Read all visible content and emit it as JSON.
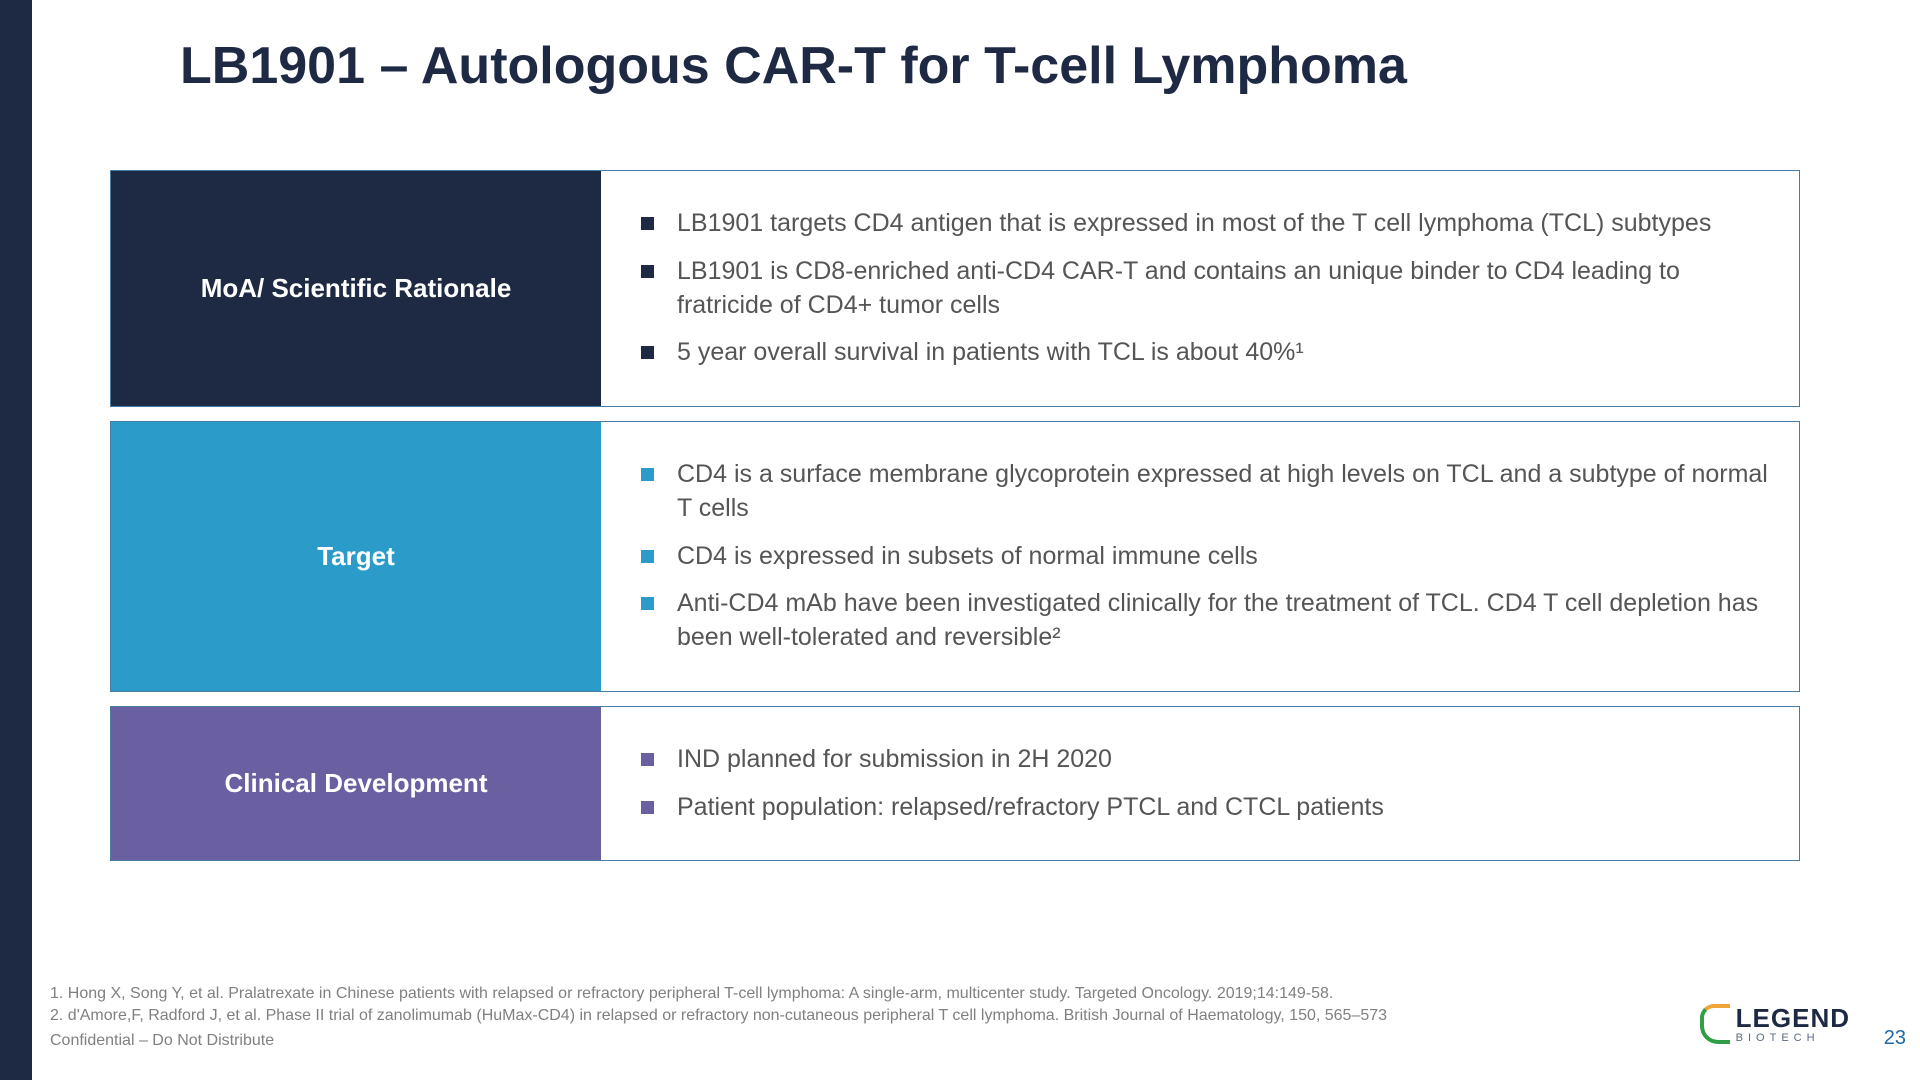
{
  "slide": {
    "title": "LB1901 – Autologous CAR-T for T-cell Lymphoma",
    "title_color": "#1e2a44",
    "left_bar_color": "#1e2a44",
    "page_number": "23",
    "page_number_color": "#1f6aa5"
  },
  "rows": [
    {
      "category": "MoA/ Scientific Rationale",
      "cat_bg": "#1e2a44",
      "bullet_color": "#1e2a44",
      "items": [
        "LB1901 targets CD4 antigen that is expressed in most of the T cell lymphoma (TCL) subtypes",
        "LB1901 is CD8-enriched anti-CD4 CAR-T and contains an unique binder to CD4 leading to fratricide of CD4+ tumor cells",
        "5 year overall survival in patients with TCL is about 40%¹"
      ]
    },
    {
      "category": "Target",
      "cat_bg": "#2b9bc9",
      "bullet_color": "#2b9bc9",
      "items": [
        "CD4 is a surface membrane glycoprotein expressed at high levels on TCL and a subtype of normal T cells",
        "CD4 is expressed in subsets of normal immune cells",
        "Anti-CD4 mAb have been investigated clinically for the treatment of TCL. CD4 T cell depletion has been well-tolerated and reversible²"
      ]
    },
    {
      "category": "Clinical Development",
      "cat_bg": "#6a5fa0",
      "bullet_color": "#6a5fa0",
      "items": [
        "IND planned for submission in 2H 2020",
        "Patient population: relapsed/refractory PTCL and CTCL patients"
      ]
    }
  ],
  "footnotes": {
    "ref1": "1. Hong X, Song Y, et al.  Pralatrexate in Chinese patients with relapsed or refractory peripheral T-cell lymphoma:  A single-arm, multicenter study.  Targeted Oncology.  2019;14:149-58.",
    "ref2": "2. d'Amore,F, Radford J, et al. Phase II trial of zanolimumab (HuMax-CD4) in relapsed or refractory non-cutaneous peripheral T cell lymphoma. British Journal of Haematology, 150, 565–573",
    "confidential": "Confidential – Do Not Distribute"
  },
  "logo": {
    "main": "LEGEND",
    "sub": "BIOTECH"
  }
}
